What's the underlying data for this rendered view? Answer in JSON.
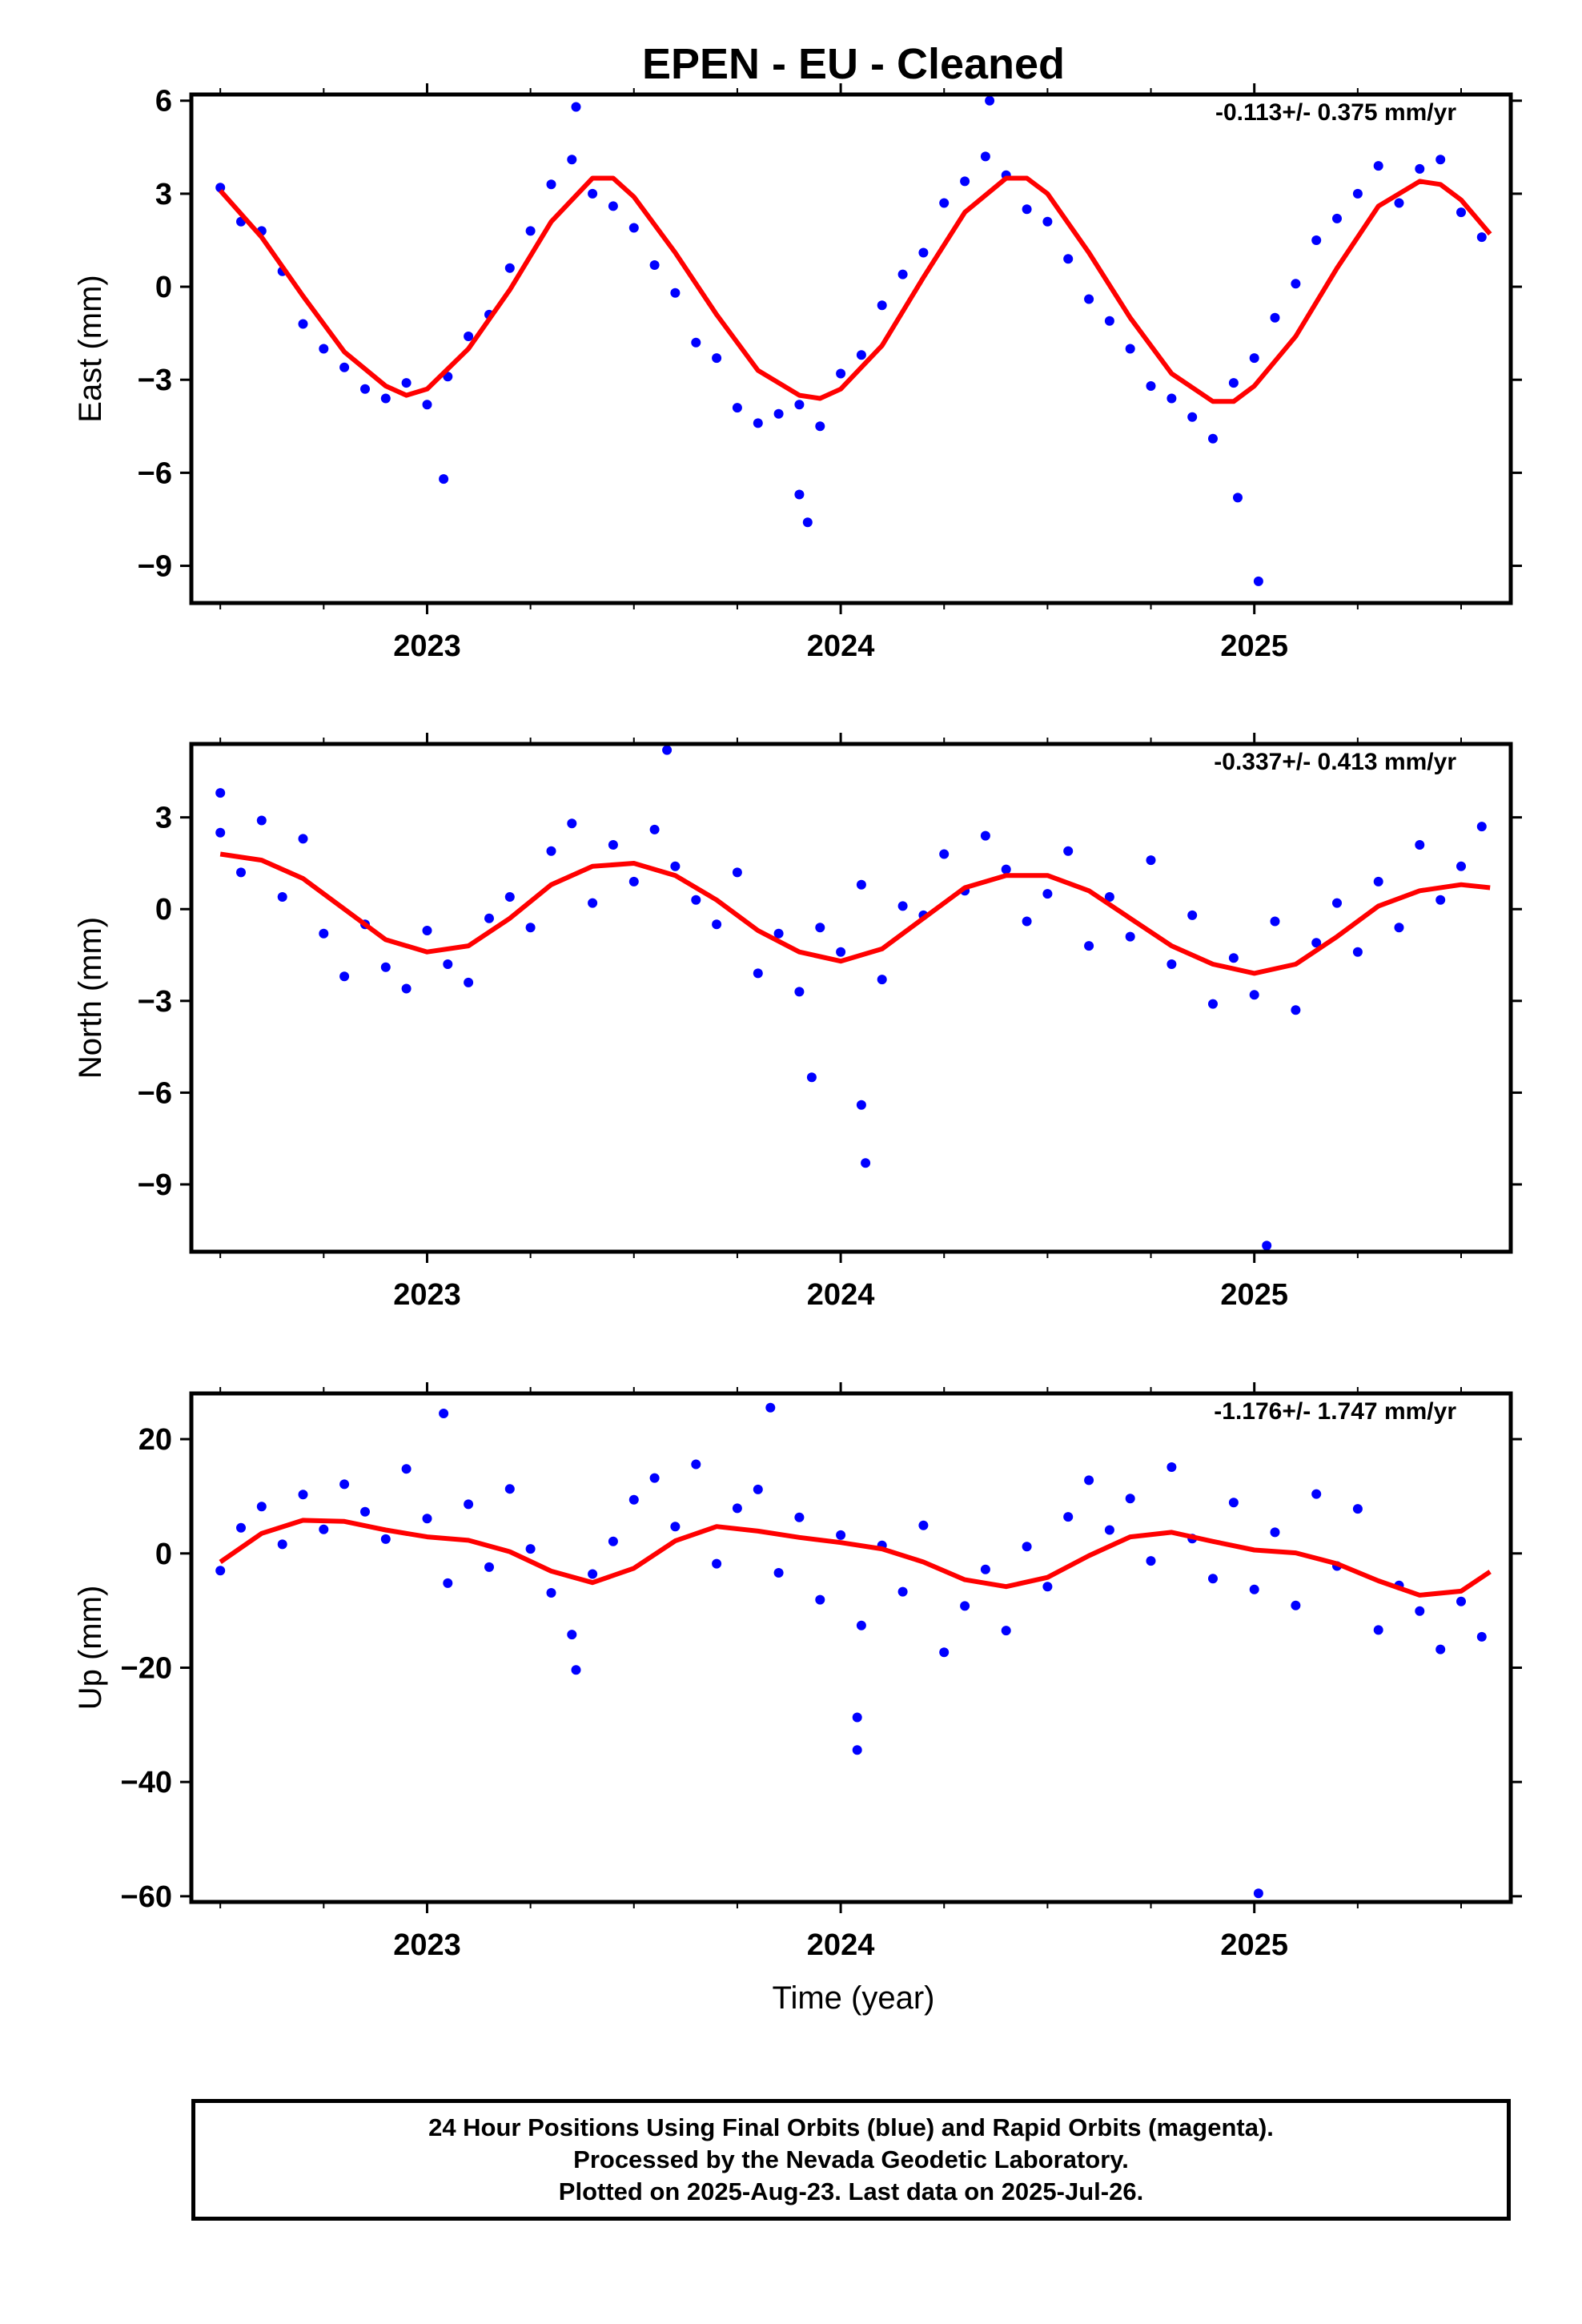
{
  "title": "EPEN  - EU - Cleaned",
  "xlabel": "Time (year)",
  "colors": {
    "final_orbits": "#0000ff",
    "model_fit": "#ff0000",
    "frame": "#000000"
  },
  "footer": {
    "line1": "24 Hour Positions Using Final Orbits (blue) and Rapid Orbits (magenta).",
    "line2": "Processed by the Nevada Geodetic Laboratory.",
    "line3": "Plotted on 2025-Aug-23. Last data on 2025-Jul-26."
  },
  "chart_data": [
    {
      "type": "scatter",
      "ylabel": "East (mm)",
      "rate_text": "-0.113+/- 0.375 mm/yr",
      "xlim": [
        2022.43,
        2025.62
      ],
      "ylim": [
        -10.2,
        6.2
      ],
      "x_ticks": [
        "2023",
        "2024",
        "2025"
      ],
      "y_ticks": [
        "6",
        "3",
        "0",
        "-3",
        "-6",
        "-9"
      ],
      "grid": false,
      "fit_curve": {
        "x": [
          2022.5,
          2022.6,
          2022.7,
          2022.8,
          2022.9,
          2022.95,
          2023.0,
          2023.1,
          2023.2,
          2023.3,
          2023.4,
          2023.45,
          2023.5,
          2023.6,
          2023.7,
          2023.8,
          2023.9,
          2023.95,
          2024.0,
          2024.1,
          2024.2,
          2024.3,
          2024.4,
          2024.45,
          2024.5,
          2024.6,
          2024.7,
          2024.8,
          2024.9,
          2024.95,
          2025.0,
          2025.1,
          2025.2,
          2025.3,
          2025.4,
          2025.45,
          2025.5,
          2025.57
        ],
        "y": [
          3.1,
          1.6,
          -0.3,
          -2.1,
          -3.2,
          -3.5,
          -3.3,
          -2.0,
          -0.1,
          2.1,
          3.5,
          3.5,
          2.9,
          1.1,
          -0.9,
          -2.7,
          -3.5,
          -3.6,
          -3.3,
          -1.9,
          0.3,
          2.4,
          3.5,
          3.5,
          3.0,
          1.1,
          -1.0,
          -2.8,
          -3.7,
          -3.7,
          -3.2,
          -1.6,
          0.6,
          2.6,
          3.4,
          3.3,
          2.8,
          1.7
        ]
      },
      "series": [
        {
          "name": "Final Orbits",
          "x": [
            2022.5,
            2022.55,
            2022.6,
            2022.65,
            2022.7,
            2022.75,
            2022.8,
            2022.85,
            2022.9,
            2022.95,
            2023.0,
            2023.05,
            2023.1,
            2023.15,
            2023.2,
            2023.25,
            2023.3,
            2023.35,
            2023.4,
            2023.45,
            2023.5,
            2023.55,
            2023.6,
            2023.65,
            2023.7,
            2023.75,
            2023.8,
            2023.85,
            2023.9,
            2023.95,
            2024.0,
            2024.05,
            2024.1,
            2024.15,
            2024.2,
            2024.25,
            2024.3,
            2024.35,
            2024.4,
            2024.45,
            2024.5,
            2024.55,
            2024.6,
            2024.65,
            2024.7,
            2024.75,
            2024.8,
            2024.85,
            2024.9,
            2024.95,
            2025.0,
            2025.05,
            2025.1,
            2025.15,
            2025.2,
            2025.25,
            2025.3,
            2025.35,
            2025.4,
            2025.45,
            2025.5,
            2025.55,
            2023.36,
            2023.92,
            2024.36,
            2025.01,
            2023.04,
            2023.9,
            2024.96
          ],
          "y": [
            3.2,
            2.1,
            1.8,
            0.5,
            -1.2,
            -2.0,
            -2.6,
            -3.3,
            -3.6,
            -3.1,
            -3.8,
            -2.9,
            -1.6,
            -0.9,
            0.6,
            1.8,
            3.3,
            4.1,
            3.0,
            2.6,
            1.9,
            0.7,
            -0.2,
            -1.8,
            -2.3,
            -3.9,
            -4.4,
            -4.1,
            -3.8,
            -4.5,
            -2.8,
            -2.2,
            -0.6,
            0.4,
            1.1,
            2.7,
            3.4,
            4.2,
            3.6,
            2.5,
            2.1,
            0.9,
            -0.4,
            -1.1,
            -2.0,
            -3.2,
            -3.6,
            -4.2,
            -4.9,
            -3.1,
            -2.3,
            -1.0,
            0.1,
            1.5,
            2.2,
            3.0,
            3.9,
            2.7,
            3.8,
            4.1,
            2.4,
            1.6,
            5.8,
            -7.6,
            6.0,
            -9.5,
            -6.2,
            -6.7,
            -6.8
          ]
        }
      ]
    },
    {
      "type": "scatter",
      "ylabel": "North (mm)",
      "rate_text": "-0.337+/- 0.413 mm/yr",
      "xlim": [
        2022.43,
        2025.62
      ],
      "ylim": [
        -11.2,
        5.4
      ],
      "x_ticks": [
        "2023",
        "2024",
        "2025"
      ],
      "y_ticks": [
        "3",
        "0",
        "-3",
        "-6",
        "-9"
      ],
      "grid": false,
      "fit_curve": {
        "x": [
          2022.5,
          2022.6,
          2022.7,
          2022.8,
          2022.9,
          2023.0,
          2023.1,
          2023.2,
          2023.3,
          2023.4,
          2023.5,
          2023.6,
          2023.7,
          2023.8,
          2023.9,
          2024.0,
          2024.1,
          2024.2,
          2024.3,
          2024.4,
          2024.5,
          2024.6,
          2024.7,
          2024.8,
          2024.9,
          2025.0,
          2025.1,
          2025.2,
          2025.3,
          2025.4,
          2025.5,
          2025.57
        ],
        "y": [
          1.8,
          1.6,
          1.0,
          0.0,
          -1.0,
          -1.4,
          -1.2,
          -0.3,
          0.8,
          1.4,
          1.5,
          1.1,
          0.3,
          -0.7,
          -1.4,
          -1.7,
          -1.3,
          -0.3,
          0.7,
          1.1,
          1.1,
          0.6,
          -0.3,
          -1.2,
          -1.8,
          -2.1,
          -1.8,
          -0.9,
          0.1,
          0.6,
          0.8,
          0.7
        ]
      },
      "series": [
        {
          "name": "Final Orbits",
          "x": [
            2022.5,
            2022.55,
            2022.6,
            2022.65,
            2022.7,
            2022.75,
            2022.8,
            2022.85,
            2022.9,
            2022.95,
            2023.0,
            2023.05,
            2023.1,
            2023.15,
            2023.2,
            2023.25,
            2023.3,
            2023.35,
            2023.4,
            2023.45,
            2023.5,
            2023.55,
            2023.6,
            2023.65,
            2023.7,
            2023.75,
            2023.8,
            2023.85,
            2023.9,
            2023.95,
            2024.0,
            2024.05,
            2024.1,
            2024.15,
            2024.2,
            2024.25,
            2024.3,
            2024.35,
            2024.4,
            2024.45,
            2024.5,
            2024.55,
            2024.6,
            2024.65,
            2024.7,
            2024.75,
            2024.8,
            2024.85,
            2024.9,
            2024.95,
            2025.0,
            2025.05,
            2025.1,
            2025.15,
            2025.2,
            2025.25,
            2025.3,
            2025.35,
            2025.4,
            2025.45,
            2025.5,
            2025.55,
            2023.58,
            2023.93,
            2024.05,
            2024.06,
            2025.03,
            2022.5
          ],
          "y": [
            2.5,
            1.2,
            2.9,
            0.4,
            2.3,
            -0.8,
            -2.2,
            -0.5,
            -1.9,
            -2.6,
            -0.7,
            -1.8,
            -2.4,
            -0.3,
            0.4,
            -0.6,
            1.9,
            2.8,
            0.2,
            2.1,
            0.9,
            2.6,
            1.4,
            0.3,
            -0.5,
            1.2,
            -2.1,
            -0.8,
            -2.7,
            -0.6,
            -1.4,
            0.8,
            -2.3,
            0.1,
            -0.2,
            1.8,
            0.6,
            2.4,
            1.3,
            -0.4,
            0.5,
            1.9,
            -1.2,
            0.4,
            -0.9,
            1.6,
            -1.8,
            -0.2,
            -3.1,
            -1.6,
            -2.8,
            -0.4,
            -3.3,
            -1.1,
            0.2,
            -1.4,
            0.9,
            -0.6,
            2.1,
            0.3,
            1.4,
            2.7,
            5.2,
            -5.5,
            -6.4,
            -8.3,
            -11.0,
            3.8
          ]
        }
      ]
    },
    {
      "type": "scatter",
      "ylabel": "Up (mm)",
      "rate_text": "-1.176+/- 1.747 mm/yr",
      "xlim": [
        2022.43,
        2025.62
      ],
      "ylim": [
        -61,
        28
      ],
      "x_ticks": [
        "2023",
        "2024",
        "2025"
      ],
      "y_ticks": [
        "20",
        "0",
        "-20",
        "-40",
        "-60"
      ],
      "grid": false,
      "fit_curve": {
        "x": [
          2022.5,
          2022.6,
          2022.7,
          2022.8,
          2022.9,
          2023.0,
          2023.1,
          2023.2,
          2023.3,
          2023.4,
          2023.5,
          2023.6,
          2023.7,
          2023.8,
          2023.9,
          2024.0,
          2024.1,
          2024.2,
          2024.3,
          2024.4,
          2024.5,
          2024.6,
          2024.7,
          2024.8,
          2024.9,
          2025.0,
          2025.1,
          2025.2,
          2025.3,
          2025.4,
          2025.5,
          2025.57
        ],
        "y": [
          -1.5,
          3.5,
          5.8,
          5.6,
          4.1,
          2.9,
          2.3,
          0.3,
          -3.1,
          -5.1,
          -2.6,
          2.2,
          4.7,
          3.9,
          2.8,
          1.9,
          0.8,
          -1.5,
          -4.6,
          -5.8,
          -4.2,
          -0.4,
          2.9,
          3.7,
          2.1,
          0.6,
          0.1,
          -1.8,
          -4.8,
          -7.3,
          -6.6,
          -3.2
        ]
      },
      "series": [
        {
          "name": "Final Orbits",
          "x": [
            2022.5,
            2022.55,
            2022.6,
            2022.65,
            2022.7,
            2022.75,
            2022.8,
            2022.85,
            2022.9,
            2022.95,
            2023.0,
            2023.05,
            2023.1,
            2023.15,
            2023.2,
            2023.25,
            2023.3,
            2023.35,
            2023.4,
            2023.45,
            2023.5,
            2023.55,
            2023.6,
            2023.65,
            2023.7,
            2023.75,
            2023.8,
            2023.85,
            2023.9,
            2023.95,
            2024.0,
            2024.05,
            2024.1,
            2024.15,
            2024.2,
            2024.25,
            2024.3,
            2024.35,
            2024.4,
            2024.45,
            2024.5,
            2024.55,
            2024.6,
            2024.65,
            2024.7,
            2024.75,
            2024.8,
            2024.85,
            2024.9,
            2024.95,
            2025.0,
            2025.05,
            2025.1,
            2025.15,
            2025.2,
            2025.25,
            2025.3,
            2025.35,
            2025.4,
            2025.45,
            2025.5,
            2025.55,
            2023.04,
            2023.83,
            2024.04,
            2024.04,
            2025.01,
            2023.36
          ],
          "y": [
            -3.0,
            4.5,
            8.2,
            1.6,
            10.3,
            4.2,
            12.1,
            7.3,
            2.5,
            14.8,
            6.1,
            -5.2,
            8.6,
            -2.4,
            11.3,
            0.8,
            -6.9,
            -14.2,
            -3.6,
            2.1,
            9.4,
            13.2,
            4.7,
            15.6,
            -1.8,
            7.9,
            11.2,
            -3.4,
            6.3,
            -8.1,
            3.2,
            -12.6,
            1.4,
            -6.7,
            4.9,
            -17.3,
            -9.2,
            -2.8,
            -13.5,
            1.2,
            -5.8,
            6.4,
            12.8,
            4.1,
            9.6,
            -1.3,
            15.1,
            2.6,
            -4.4,
            8.9,
            -6.3,
            3.7,
            -9.1,
            10.4,
            -2.2,
            7.8,
            -13.4,
            -5.6,
            -10.1,
            -16.8,
            -8.4,
            -14.6,
            24.5,
            25.5,
            -28.7,
            -34.4,
            -59.5,
            -20.4
          ]
        }
      ]
    }
  ]
}
